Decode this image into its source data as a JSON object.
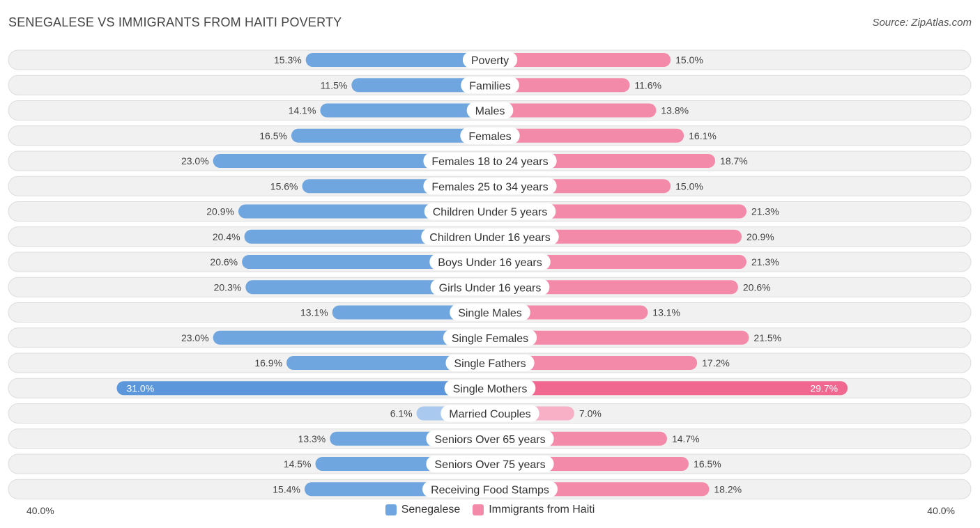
{
  "header": {
    "title": "SENEGALESE VS IMMIGRANTS FROM HAITI POVERTY",
    "source": "Source: ZipAtlas.com"
  },
  "colors": {
    "left": "#6fa6df",
    "left_strong": "#5b97da",
    "left_light": "#a9c9ee",
    "right": "#f48aaa",
    "right_strong": "#f06790",
    "right_light": "#f7b0c6"
  },
  "chart_data": {
    "type": "bar",
    "orientation": "horizontal-diverging",
    "title": "SENEGALESE VS IMMIGRANTS FROM HAITI POVERTY",
    "xlim": [
      0,
      40
    ],
    "axis_labels": {
      "left": "40.0%",
      "right": "40.0%"
    },
    "legend": [
      {
        "name": "Senegalese",
        "color": "#6fa6df"
      },
      {
        "name": "Immigrants from Haiti",
        "color": "#f48aaa"
      }
    ],
    "categories": [
      "Poverty",
      "Families",
      "Males",
      "Females",
      "Females 18 to 24 years",
      "Females 25 to 34 years",
      "Children Under 5 years",
      "Children Under 16 years",
      "Boys Under 16 years",
      "Girls Under 16 years",
      "Single Males",
      "Single Females",
      "Single Fathers",
      "Single Mothers",
      "Married Couples",
      "Seniors Over 65 years",
      "Seniors Over 75 years",
      "Receiving Food Stamps"
    ],
    "series": [
      {
        "name": "Senegalese",
        "values": [
          15.3,
          11.5,
          14.1,
          16.5,
          23.0,
          15.6,
          20.9,
          20.4,
          20.6,
          20.3,
          13.1,
          23.0,
          16.9,
          31.0,
          6.1,
          13.3,
          14.5,
          15.4
        ],
        "labels": [
          "15.3%",
          "11.5%",
          "14.1%",
          "16.5%",
          "23.0%",
          "15.6%",
          "20.9%",
          "20.4%",
          "20.6%",
          "20.3%",
          "13.1%",
          "23.0%",
          "16.9%",
          "31.0%",
          "6.1%",
          "13.3%",
          "14.5%",
          "15.4%"
        ]
      },
      {
        "name": "Immigrants from Haiti",
        "values": [
          15.0,
          11.6,
          13.8,
          16.1,
          18.7,
          15.0,
          21.3,
          20.9,
          21.3,
          20.6,
          13.1,
          21.5,
          17.2,
          29.7,
          7.0,
          14.7,
          16.5,
          18.2
        ],
        "labels": [
          "15.0%",
          "11.6%",
          "13.8%",
          "16.1%",
          "18.7%",
          "15.0%",
          "21.3%",
          "20.9%",
          "21.3%",
          "20.6%",
          "13.1%",
          "21.5%",
          "17.2%",
          "29.7%",
          "7.0%",
          "14.7%",
          "16.5%",
          "18.2%"
        ]
      }
    ]
  }
}
